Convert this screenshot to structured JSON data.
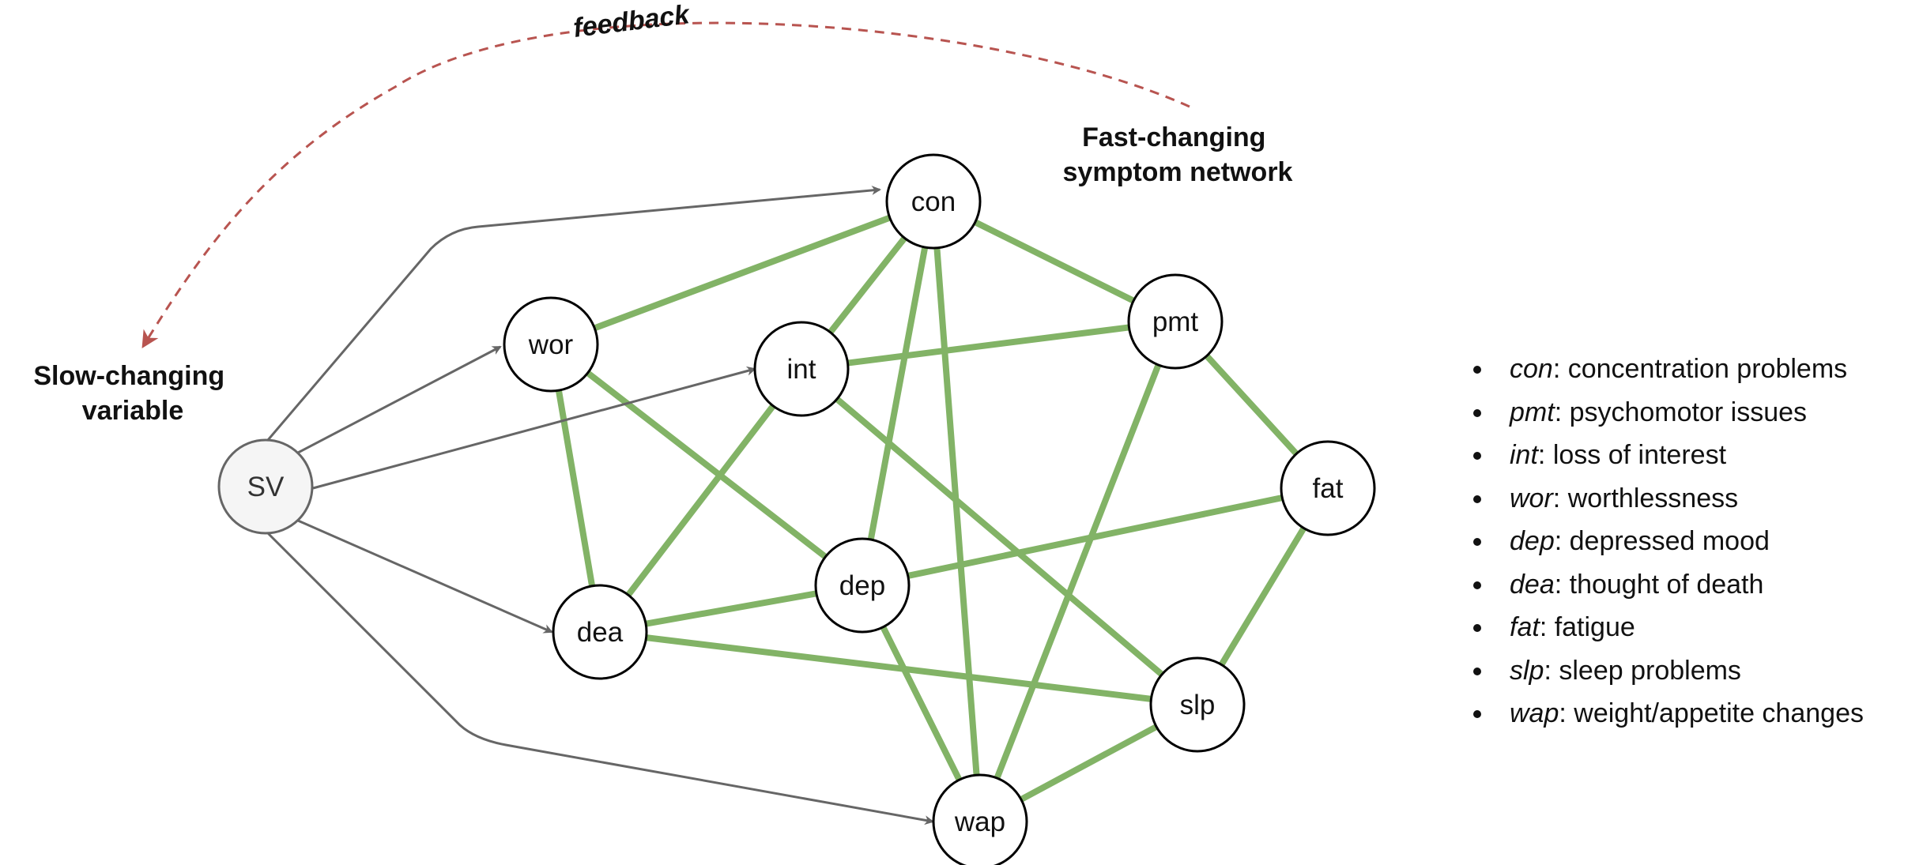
{
  "diagram": {
    "annotations": {
      "feedback": "feedback",
      "fast_network": [
        "Fast-changing",
        "symptom network"
      ],
      "slow_variable": [
        "Slow-changing",
        "variable"
      ]
    },
    "nodes": [
      {
        "id": "SV",
        "label": "SV"
      },
      {
        "id": "con",
        "label": "con"
      },
      {
        "id": "wor",
        "label": "wor"
      },
      {
        "id": "int",
        "label": "int"
      },
      {
        "id": "pmt",
        "label": "pmt"
      },
      {
        "id": "fat",
        "label": "fat"
      },
      {
        "id": "dep",
        "label": "dep"
      },
      {
        "id": "dea",
        "label": "dea"
      },
      {
        "id": "slp",
        "label": "slp"
      },
      {
        "id": "wap",
        "label": "wap"
      }
    ],
    "directed_edges": [
      {
        "from": "SV",
        "to": "con"
      },
      {
        "from": "SV",
        "to": "wor"
      },
      {
        "from": "SV",
        "to": "int"
      },
      {
        "from": "SV",
        "to": "dea"
      },
      {
        "from": "SV",
        "to": "wap"
      }
    ],
    "undirected_edges": [
      [
        "con",
        "wor"
      ],
      [
        "con",
        "int"
      ],
      [
        "con",
        "dep"
      ],
      [
        "con",
        "wap"
      ],
      [
        "con",
        "pmt"
      ],
      [
        "wor",
        "dea"
      ],
      [
        "wor",
        "dep"
      ],
      [
        "int",
        "pmt"
      ],
      [
        "int",
        "dea"
      ],
      [
        "int",
        "slp"
      ],
      [
        "pmt",
        "fat"
      ],
      [
        "pmt",
        "wap"
      ],
      [
        "fat",
        "dep"
      ],
      [
        "fat",
        "slp"
      ],
      [
        "dea",
        "dep"
      ],
      [
        "dea",
        "slp"
      ],
      [
        "dep",
        "wap"
      ],
      [
        "slp",
        "wap"
      ]
    ],
    "colors": {
      "symptom_edge": "#82b366",
      "directed_edge": "#666666",
      "feedback_arrow": "#b85450",
      "node_border": "#000000",
      "sv_fill": "#f5f5f5",
      "sv_border": "#666666"
    }
  },
  "legend": [
    {
      "abbr": "con",
      "desc": ": concentration problems"
    },
    {
      "abbr": "pmt",
      "desc": ": psychomotor issues"
    },
    {
      "abbr": "int",
      "desc": ": loss of interest"
    },
    {
      "abbr": "wor",
      "desc": ": worthlessness"
    },
    {
      "abbr": "dep",
      "desc": ": depressed mood"
    },
    {
      "abbr": "dea",
      "desc": ": thought of death"
    },
    {
      "abbr": "fat",
      "desc": ": fatigue"
    },
    {
      "abbr": "slp",
      "desc": ": sleep problems"
    },
    {
      "abbr": "wap",
      "desc": ": weight/appetite changes"
    }
  ]
}
